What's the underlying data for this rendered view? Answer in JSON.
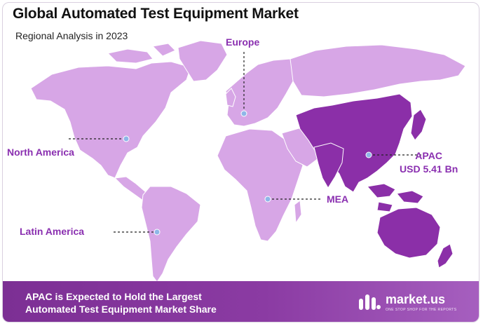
{
  "title": "Global Automated Test Equipment Market",
  "subtitle": "Regional Analysis in 2023",
  "colors": {
    "land": "#d7a6e6",
    "highlight": "#8b2fa8",
    "label": "#8a2fb0",
    "marker": "#8fb6e8",
    "banner": "#7c2f94"
  },
  "regions": {
    "europe": "Europe",
    "north_america": "North America",
    "latin_america": "Latin America",
    "mea": "MEA",
    "apac_name": "APAC",
    "apac_value": "USD 5.41 Bn"
  },
  "footer": {
    "line1": "APAC is Expected to Hold the Largest",
    "line2": "Automated Test Equipment Market Share"
  },
  "brand": {
    "name": "market.us",
    "tagline": "ONE STOP SHOP FOR THE REPORTS",
    "logo_icon": "market-us-logo-icon"
  }
}
